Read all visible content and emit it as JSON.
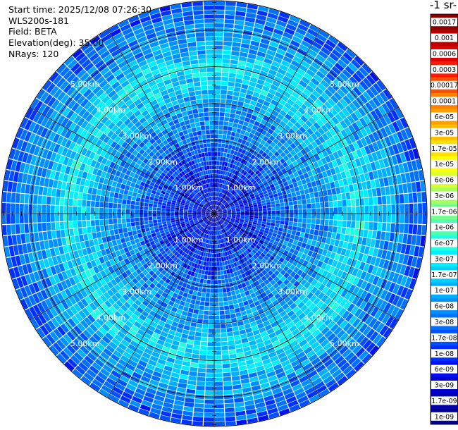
{
  "header": {
    "start_time": "Start time: 2025/12/08 07:26:30",
    "instrument": "WLS200s-181",
    "field": "Field: BETA",
    "elevation": "Elevation(deg): 35.00",
    "nrays": "NRays: 120"
  },
  "colorbar": {
    "unit_label": "-1 sr-",
    "labels": [
      "0.0017",
      "0.001",
      "0.0006",
      "0.0003",
      "0.00017",
      "0.0001",
      "6e-05",
      "3e-05",
      "1.7e-05",
      "1e-05",
      "6e-06",
      "3e-06",
      "1.7e-06",
      "1e-06",
      "6e-07",
      "3e-07",
      "1.7e-07",
      "1e-07",
      "6e-08",
      "3e-08",
      "1.7e-08",
      "1e-08",
      "6e-09",
      "3e-09",
      "1.7e-09",
      "1e-09"
    ],
    "colors": [
      "#8b0000",
      "#b40000",
      "#dc0000",
      "#ff1a00",
      "#ff4d00",
      "#ff8000",
      "#ffa000",
      "#ffc000",
      "#ffe000",
      "#ffff00",
      "#d8ff30",
      "#a8ff60",
      "#78ff90",
      "#50ffb0",
      "#20ffe0",
      "#00f0ff",
      "#00d0ff",
      "#00b0ff",
      "#0090ff",
      "#0070ff",
      "#0050ff",
      "#0030ff",
      "#0010f0",
      "#0000d0",
      "#0000b0",
      "#000090"
    ]
  },
  "chart_data": {
    "type": "heatmap",
    "projection": "polar (PPI scan)",
    "field": "BETA",
    "elevation_deg": 35.0,
    "n_rays": 120,
    "range_rings_km": [
      1,
      2,
      3,
      4,
      5
    ],
    "range_ring_labels": [
      "1.00km",
      "2.00km",
      "3.00km",
      "4.00km",
      "5.00km"
    ],
    "max_range_km": 5.8,
    "colorscale": "log",
    "range_profile": [
      {
        "range_km": 0.0,
        "value": 3e-09
      },
      {
        "range_km": 0.5,
        "value": 1e-08
      },
      {
        "range_km": 1.0,
        "value": 1e-08
      },
      {
        "range_km": 1.5,
        "value": 1.7e-08
      },
      {
        "range_km": 2.0,
        "value": 3e-08
      },
      {
        "range_km": 2.5,
        "value": 6e-08
      },
      {
        "range_km": 3.0,
        "value": 6e-08
      },
      {
        "range_km": 3.5,
        "value": 1.7e-07
      },
      {
        "range_km": 4.0,
        "value": 3e-07
      },
      {
        "range_km": 4.5,
        "value": 1e-07
      },
      {
        "range_km": 5.0,
        "value": 6e-08
      },
      {
        "range_km": 5.5,
        "value": 3e-08
      },
      {
        "range_km": 5.8,
        "value": 1.7e-08
      }
    ]
  }
}
